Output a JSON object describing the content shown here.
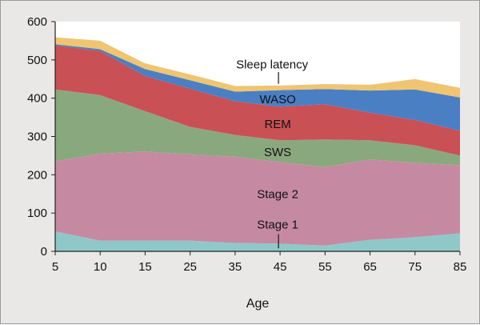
{
  "chart_data": {
    "type": "area",
    "stacked": true,
    "title": "",
    "xlabel": "Age",
    "ylabel": "",
    "x": [
      "5",
      "10",
      "15",
      "25",
      "35",
      "45",
      "55",
      "65",
      "75",
      "85"
    ],
    "ylim": [
      0,
      600
    ],
    "yticks": [
      0,
      100,
      200,
      300,
      400,
      500,
      600
    ],
    "grid": false,
    "series": [
      {
        "name": "Stage 1",
        "color": "#8fc8c8",
        "values": [
          52,
          28,
          28,
          28,
          22,
          20,
          15,
          30,
          37,
          47
        ]
      },
      {
        "name": "Stage 2",
        "color": "#c58aa2",
        "values": [
          183,
          227,
          233,
          225,
          225,
          213,
          205,
          210,
          194,
          178
        ]
      },
      {
        "name": "SWS",
        "color": "#8aa87e",
        "values": [
          188,
          153,
          105,
          72,
          57,
          57,
          72,
          50,
          46,
          25
        ]
      },
      {
        "name": "REM",
        "color": "#c95055",
        "values": [
          115,
          115,
          92,
          100,
          88,
          88,
          92,
          72,
          66,
          65
        ]
      },
      {
        "name": "WASO",
        "color": "#4b7fc4",
        "values": [
          3,
          5,
          18,
          22,
          25,
          43,
          40,
          58,
          80,
          87
        ]
      },
      {
        "name": "Sleep latency",
        "color": "#efc572",
        "values": [
          18,
          22,
          15,
          15,
          15,
          12,
          13,
          15,
          27,
          25
        ]
      }
    ],
    "annotations": [
      "Sleep latency",
      "WASO",
      "REM",
      "SWS",
      "Stage 2",
      "Stage 1"
    ]
  }
}
